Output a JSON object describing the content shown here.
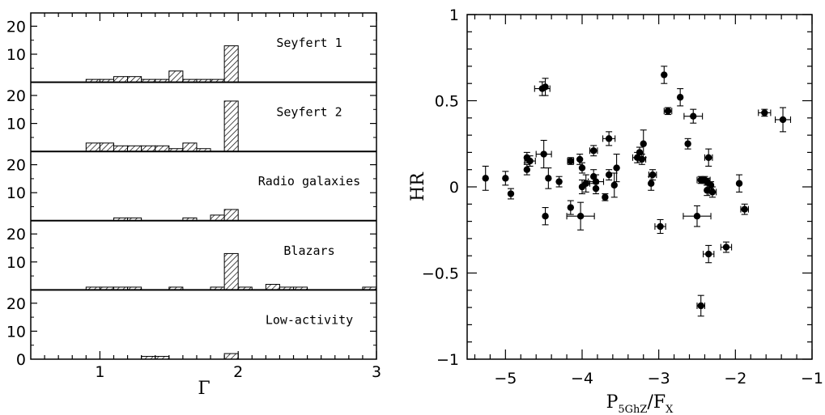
{
  "chart_data": [
    {
      "type": "bar",
      "xlabel": "Γ",
      "xlim": [
        0.5,
        3.0
      ],
      "x_ticks": [
        "1",
        "2",
        "3"
      ],
      "y_ticks": [
        "10",
        "20"
      ],
      "bottom_y_ticks": [
        "0",
        "10",
        "20"
      ],
      "bin_width": 0.1,
      "ylim": [
        0,
        20
      ],
      "hatch": "diagonal",
      "panels": [
        {
          "label": "Seyfert 1",
          "bins": [
            {
              "x": 0.9,
              "v": 1
            },
            {
              "x": 1.0,
              "v": 1
            },
            {
              "x": 1.1,
              "v": 2
            },
            {
              "x": 1.2,
              "v": 2
            },
            {
              "x": 1.3,
              "v": 1
            },
            {
              "x": 1.4,
              "v": 1
            },
            {
              "x": 1.5,
              "v": 4
            },
            {
              "x": 1.6,
              "v": 1
            },
            {
              "x": 1.7,
              "v": 1
            },
            {
              "x": 1.8,
              "v": 1
            },
            {
              "x": 1.9,
              "v": 13
            }
          ]
        },
        {
          "label": "Seyfert 2",
          "bins": [
            {
              "x": 0.9,
              "v": 3
            },
            {
              "x": 1.0,
              "v": 3
            },
            {
              "x": 1.1,
              "v": 2
            },
            {
              "x": 1.2,
              "v": 2
            },
            {
              "x": 1.3,
              "v": 2
            },
            {
              "x": 1.4,
              "v": 2
            },
            {
              "x": 1.5,
              "v": 1
            },
            {
              "x": 1.6,
              "v": 3
            },
            {
              "x": 1.7,
              "v": 1
            },
            {
              "x": 1.9,
              "v": 18
            }
          ]
        },
        {
          "label": "Radio galaxies",
          "bins": [
            {
              "x": 1.1,
              "v": 1
            },
            {
              "x": 1.2,
              "v": 1
            },
            {
              "x": 1.6,
              "v": 1
            },
            {
              "x": 1.8,
              "v": 2
            },
            {
              "x": 1.9,
              "v": 4
            }
          ]
        },
        {
          "label": "Blazars",
          "bins": [
            {
              "x": 0.9,
              "v": 1
            },
            {
              "x": 1.0,
              "v": 1
            },
            {
              "x": 1.1,
              "v": 1
            },
            {
              "x": 1.2,
              "v": 1
            },
            {
              "x": 1.5,
              "v": 1
            },
            {
              "x": 1.8,
              "v": 1
            },
            {
              "x": 1.9,
              "v": 13
            },
            {
              "x": 2.0,
              "v": 1
            },
            {
              "x": 2.2,
              "v": 2
            },
            {
              "x": 2.3,
              "v": 1
            },
            {
              "x": 2.4,
              "v": 1
            },
            {
              "x": 2.9,
              "v": 1
            }
          ]
        },
        {
          "label": "Low-activity",
          "bins": [
            {
              "x": 1.3,
              "v": 1
            },
            {
              "x": 1.4,
              "v": 1
            },
            {
              "x": 1.9,
              "v": 2
            }
          ]
        }
      ]
    },
    {
      "type": "scatter",
      "xlabel_main": "P",
      "xlabel_sub1": "5GhZ",
      "xlabel_mid": "/F",
      "xlabel_sub2": "X",
      "ylabel": "HR",
      "xlim": [
        -5.5,
        -1.0
      ],
      "ylim": [
        -1.0,
        1.0
      ],
      "x_ticks": [
        "−5",
        "−4",
        "−3",
        "−2",
        "−1"
      ],
      "y_ticks": [
        "1",
        "0.5",
        "0",
        "−0.5",
        "−1"
      ],
      "marker_color": "#000000",
      "points": [
        {
          "x": -5.26,
          "y": 0.05,
          "xe": 0.0,
          "ye": 0.07
        },
        {
          "x": -5.0,
          "y": 0.05,
          "xe": 0.0,
          "ye": 0.04
        },
        {
          "x": -4.93,
          "y": -0.04,
          "xe": 0.0,
          "ye": 0.03
        },
        {
          "x": -4.52,
          "y": 0.57,
          "xe": 0.1,
          "ye": 0.04
        },
        {
          "x": -4.48,
          "y": 0.58,
          "xe": 0.0,
          "ye": 0.05
        },
        {
          "x": -4.5,
          "y": 0.19,
          "xe": 0.1,
          "ye": 0.08
        },
        {
          "x": -4.72,
          "y": 0.17,
          "xe": 0.0,
          "ye": 0.03
        },
        {
          "x": -4.68,
          "y": 0.15,
          "xe": 0.07,
          "ye": 0.03
        },
        {
          "x": -4.72,
          "y": 0.1,
          "xe": 0.0,
          "ye": 0.03
        },
        {
          "x": -4.44,
          "y": 0.05,
          "xe": 0.0,
          "ye": 0.06
        },
        {
          "x": -4.48,
          "y": -0.17,
          "xe": 0.0,
          "ye": 0.05
        },
        {
          "x": -4.3,
          "y": 0.03,
          "xe": 0.0,
          "ye": 0.03
        },
        {
          "x": -4.15,
          "y": -0.12,
          "xe": 0.0,
          "ye": 0.04
        },
        {
          "x": -4.02,
          "y": -0.17,
          "xe": 0.18,
          "ye": 0.08
        },
        {
          "x": -4.15,
          "y": 0.15,
          "xe": 0.04,
          "ye": 0.02
        },
        {
          "x": -4.03,
          "y": 0.16,
          "xe": 0.0,
          "ye": 0.03
        },
        {
          "x": -4.0,
          "y": 0.11,
          "xe": 0.0,
          "ye": 0.03
        },
        {
          "x": -4.0,
          "y": 0.0,
          "xe": 0.0,
          "ye": 0.04
        },
        {
          "x": -3.95,
          "y": 0.02,
          "xe": 0.05,
          "ye": 0.05
        },
        {
          "x": -3.85,
          "y": 0.21,
          "xe": 0.05,
          "ye": 0.03
        },
        {
          "x": -3.85,
          "y": 0.06,
          "xe": 0.0,
          "ye": 0.04
        },
        {
          "x": -3.82,
          "y": 0.03,
          "xe": 0.1,
          "ye": 0.04
        },
        {
          "x": -3.82,
          "y": -0.01,
          "xe": 0.0,
          "ye": 0.03
        },
        {
          "x": -3.7,
          "y": -0.06,
          "xe": 0.0,
          "ye": 0.02
        },
        {
          "x": -3.65,
          "y": 0.28,
          "xe": 0.08,
          "ye": 0.04
        },
        {
          "x": -3.65,
          "y": 0.07,
          "xe": 0.0,
          "ye": 0.03
        },
        {
          "x": -3.58,
          "y": 0.01,
          "xe": 0.0,
          "ye": 0.07
        },
        {
          "x": -3.55,
          "y": 0.11,
          "xe": 0.0,
          "ye": 0.08
        },
        {
          "x": -3.28,
          "y": 0.17,
          "xe": 0.06,
          "ye": 0.03
        },
        {
          "x": -3.25,
          "y": 0.2,
          "xe": 0.0,
          "ye": 0.03
        },
        {
          "x": -3.22,
          "y": 0.16,
          "xe": 0.05,
          "ye": 0.03
        },
        {
          "x": -3.2,
          "y": 0.25,
          "xe": 0.0,
          "ye": 0.08
        },
        {
          "x": -3.08,
          "y": 0.07,
          "xe": 0.05,
          "ye": 0.03
        },
        {
          "x": -3.1,
          "y": 0.02,
          "xe": 0.0,
          "ye": 0.04
        },
        {
          "x": -2.98,
          "y": -0.23,
          "xe": 0.07,
          "ye": 0.04
        },
        {
          "x": -2.93,
          "y": 0.65,
          "xe": 0.0,
          "ye": 0.05
        },
        {
          "x": -2.88,
          "y": 0.44,
          "xe": 0.05,
          "ye": 0.02
        },
        {
          "x": -2.72,
          "y": 0.52,
          "xe": 0.0,
          "ye": 0.05
        },
        {
          "x": -2.62,
          "y": 0.25,
          "xe": 0.0,
          "ye": 0.03
        },
        {
          "x": -2.55,
          "y": 0.41,
          "xe": 0.12,
          "ye": 0.04
        },
        {
          "x": -2.5,
          "y": -0.17,
          "xe": 0.18,
          "ye": 0.06
        },
        {
          "x": -2.45,
          "y": -0.69,
          "xe": 0.05,
          "ye": 0.06
        },
        {
          "x": -2.45,
          "y": 0.04,
          "xe": 0.05,
          "ye": 0.02
        },
        {
          "x": -2.4,
          "y": 0.04,
          "xe": 0.07,
          "ye": 0.02
        },
        {
          "x": -2.35,
          "y": 0.17,
          "xe": 0.05,
          "ye": 0.05
        },
        {
          "x": -2.37,
          "y": 0.03,
          "xe": 0.0,
          "ye": 0.02
        },
        {
          "x": -2.37,
          "y": -0.02,
          "xe": 0.0,
          "ye": 0.03
        },
        {
          "x": -2.35,
          "y": -0.39,
          "xe": 0.07,
          "ye": 0.05
        },
        {
          "x": -2.32,
          "y": 0.01,
          "xe": 0.0,
          "ye": 0.02
        },
        {
          "x": -2.3,
          "y": -0.03,
          "xe": 0.05,
          "ye": 0.03
        },
        {
          "x": -2.12,
          "y": -0.35,
          "xe": 0.07,
          "ye": 0.03
        },
        {
          "x": -1.95,
          "y": 0.02,
          "xe": 0.0,
          "ye": 0.05
        },
        {
          "x": -1.88,
          "y": -0.13,
          "xe": 0.05,
          "ye": 0.03
        },
        {
          "x": -1.62,
          "y": 0.43,
          "xe": 0.08,
          "ye": 0.02
        },
        {
          "x": -1.38,
          "y": 0.39,
          "xe": 0.1,
          "ye": 0.07
        }
      ]
    }
  ]
}
